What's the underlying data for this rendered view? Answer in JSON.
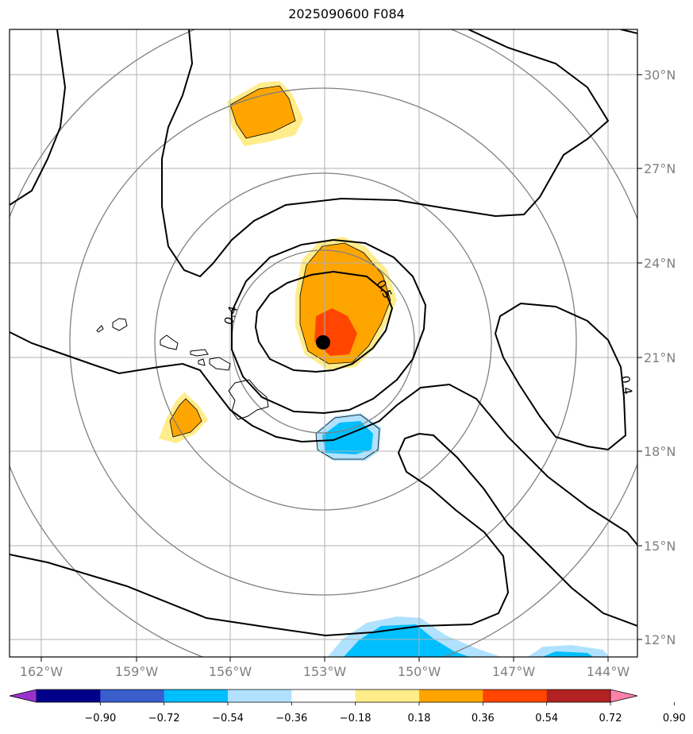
{
  "title": "2025090600 F084",
  "map": {
    "lon_ticks": [
      "162°W",
      "159°W",
      "156°W",
      "153°W",
      "150°W",
      "147°W",
      "144°W"
    ],
    "lat_ticks": [
      "30°N",
      "27°N",
      "24°N",
      "21°N",
      "18°N",
      "15°N",
      "12°N"
    ],
    "contour_labels": [
      "0.4",
      "0.5",
      "0.4"
    ],
    "storm_center": {
      "lon": "153°W",
      "lat": "21.5°N"
    }
  },
  "colorbar": {
    "ticks": [
      "−0.90",
      "−0.72",
      "−0.54",
      "−0.36",
      "−0.18",
      "0.18",
      "0.36",
      "0.54",
      "0.72",
      "0.90"
    ],
    "colors": [
      "#9932CC",
      "#00008B",
      "#3A5FCD",
      "#00BFFF",
      "#B0E2FF",
      "#FFFFFF",
      "#FFEC8B",
      "#FFA500",
      "#FF4500",
      "#B22222",
      "#FF82AB"
    ]
  }
}
